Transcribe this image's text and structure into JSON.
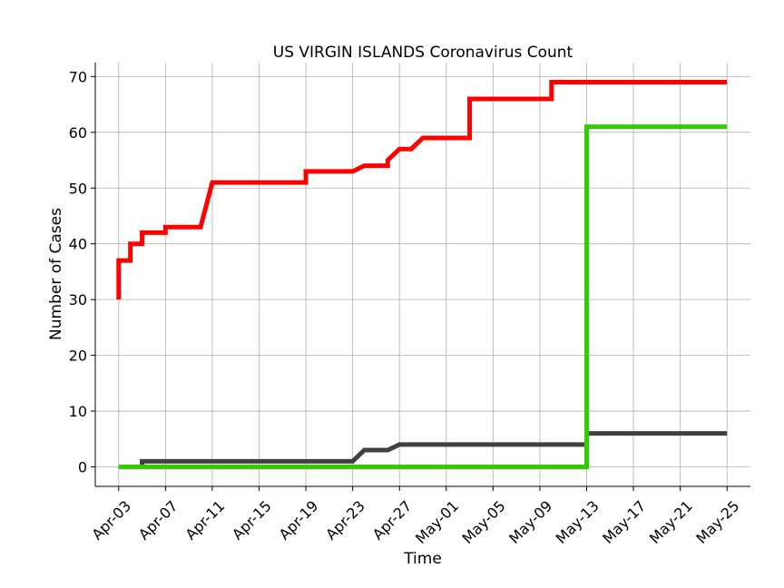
{
  "chart_data": {
    "type": "line",
    "title": "US VIRGIN ISLANDS Coronavirus Count",
    "xlabel": "Time",
    "ylabel": "Number of Cases",
    "grid": true,
    "legend": "none",
    "xlim": [
      "2020-04-01",
      "2020-05-27"
    ],
    "ylim": [
      -3.5,
      72.5
    ],
    "x_ticks": [
      "Apr-03",
      "Apr-07",
      "Apr-11",
      "Apr-15",
      "Apr-19",
      "Apr-23",
      "Apr-27",
      "May-01",
      "May-05",
      "May-09",
      "May-13",
      "May-17",
      "May-21",
      "May-25"
    ],
    "x_tick_dates": [
      "2020-04-03",
      "2020-04-07",
      "2020-04-11",
      "2020-04-15",
      "2020-04-19",
      "2020-04-23",
      "2020-04-27",
      "2020-05-01",
      "2020-05-05",
      "2020-05-09",
      "2020-05-13",
      "2020-05-17",
      "2020-05-21",
      "2020-05-25"
    ],
    "y_ticks": [
      0,
      10,
      20,
      30,
      40,
      50,
      60,
      70
    ],
    "series": [
      {
        "color": "#ff0000",
        "points": [
          [
            "2020-04-03",
            30
          ],
          [
            "2020-04-03",
            37
          ],
          [
            "2020-04-04",
            37
          ],
          [
            "2020-04-04",
            40
          ],
          [
            "2020-04-05",
            40
          ],
          [
            "2020-04-05",
            42
          ],
          [
            "2020-04-07",
            42
          ],
          [
            "2020-04-07",
            43
          ],
          [
            "2020-04-10",
            43
          ],
          [
            "2020-04-11",
            51
          ],
          [
            "2020-04-19",
            51
          ],
          [
            "2020-04-19",
            53
          ],
          [
            "2020-04-23",
            53
          ],
          [
            "2020-04-24",
            54
          ],
          [
            "2020-04-26",
            54
          ],
          [
            "2020-04-26",
            55
          ],
          [
            "2020-04-27",
            57
          ],
          [
            "2020-04-28",
            57
          ],
          [
            "2020-04-29",
            59
          ],
          [
            "2020-05-03",
            59
          ],
          [
            "2020-05-03",
            66
          ],
          [
            "2020-05-10",
            66
          ],
          [
            "2020-05-10",
            69
          ],
          [
            "2020-05-25",
            69
          ]
        ]
      },
      {
        "color": "#404040",
        "points": [
          [
            "2020-04-03",
            0
          ],
          [
            "2020-04-05",
            0
          ],
          [
            "2020-04-05",
            1
          ],
          [
            "2020-04-23",
            1
          ],
          [
            "2020-04-24",
            3
          ],
          [
            "2020-04-26",
            3
          ],
          [
            "2020-04-27",
            4
          ],
          [
            "2020-05-13",
            4
          ],
          [
            "2020-05-13",
            6
          ],
          [
            "2020-05-25",
            6
          ]
        ]
      },
      {
        "color": "#33cc00",
        "points": [
          [
            "2020-04-03",
            0
          ],
          [
            "2020-05-13",
            0
          ],
          [
            "2020-05-13",
            61
          ],
          [
            "2020-05-25",
            61
          ]
        ]
      }
    ]
  }
}
